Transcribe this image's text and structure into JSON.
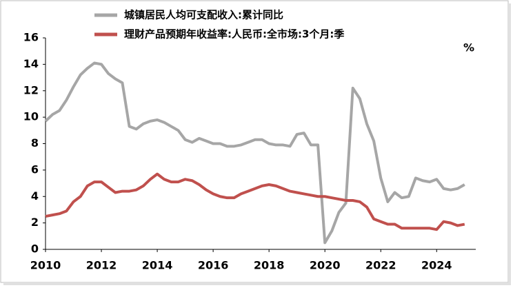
{
  "chart_data": {
    "type": "line",
    "x": [
      2010,
      2010.25,
      2010.5,
      2010.75,
      2011,
      2011.25,
      2011.5,
      2011.75,
      2012,
      2012.25,
      2012.5,
      2012.75,
      2013,
      2013.25,
      2013.5,
      2013.75,
      2014,
      2014.25,
      2014.5,
      2014.75,
      2015,
      2015.25,
      2015.5,
      2015.75,
      2016,
      2016.25,
      2016.5,
      2016.75,
      2017,
      2017.25,
      2017.5,
      2017.75,
      2018,
      2018.25,
      2018.5,
      2018.75,
      2019,
      2019.25,
      2019.5,
      2019.75,
      2020,
      2020.25,
      2020.5,
      2020.75,
      2021,
      2021.25,
      2021.5,
      2021.75,
      2022,
      2022.25,
      2022.5,
      2022.75,
      2023,
      2023.25,
      2023.5,
      2023.75,
      2024,
      2024.25,
      2024.5,
      2024.75,
      2025
    ],
    "series": [
      {
        "name": "城镇居民人均可支配收入:累计同比",
        "color": "#a6a6a6",
        "values": [
          9.7,
          10.2,
          10.5,
          11.3,
          12.3,
          13.2,
          13.7,
          14.1,
          14.0,
          13.3,
          12.9,
          12.6,
          9.3,
          9.1,
          9.5,
          9.7,
          9.8,
          9.6,
          9.3,
          9.0,
          8.3,
          8.1,
          8.4,
          8.2,
          8.0,
          8.0,
          7.8,
          7.8,
          7.9,
          8.1,
          8.3,
          8.3,
          8.0,
          7.9,
          7.9,
          7.8,
          8.7,
          8.8,
          7.9,
          7.9,
          0.5,
          1.4,
          2.8,
          3.5,
          12.2,
          11.4,
          9.5,
          8.2,
          5.4,
          3.6,
          4.3,
          3.9,
          4.0,
          5.4,
          5.2,
          5.1,
          5.3,
          4.6,
          4.5,
          4.6,
          4.9
        ]
      },
      {
        "name": "理财产品预期年收益率:人民币:全市场:3个月:季",
        "color": "#c0504d",
        "values": [
          2.5,
          2.6,
          2.7,
          2.9,
          3.6,
          4.0,
          4.8,
          5.1,
          5.1,
          4.7,
          4.3,
          4.4,
          4.4,
          4.5,
          4.8,
          5.3,
          5.7,
          5.3,
          5.1,
          5.1,
          5.3,
          5.2,
          4.9,
          4.5,
          4.2,
          4.0,
          3.9,
          3.9,
          4.2,
          4.4,
          4.6,
          4.8,
          4.9,
          4.8,
          4.6,
          4.4,
          4.3,
          4.2,
          4.1,
          4.0,
          4.0,
          3.9,
          3.8,
          3.7,
          3.7,
          3.6,
          3.2,
          2.3,
          2.1,
          1.9,
          1.9,
          1.6,
          1.6,
          1.6,
          1.6,
          1.6,
          1.5,
          2.1,
          2.0,
          1.8,
          1.9
        ]
      }
    ],
    "unit": "%",
    "xlim": [
      2010,
      2025.4
    ],
    "xticks": [
      2010,
      2012,
      2014,
      2016,
      2018,
      2020,
      2022,
      2024
    ],
    "ylim": [
      0,
      16
    ],
    "yticks": [
      0,
      2,
      4,
      6,
      8,
      10,
      12,
      14,
      16
    ]
  }
}
